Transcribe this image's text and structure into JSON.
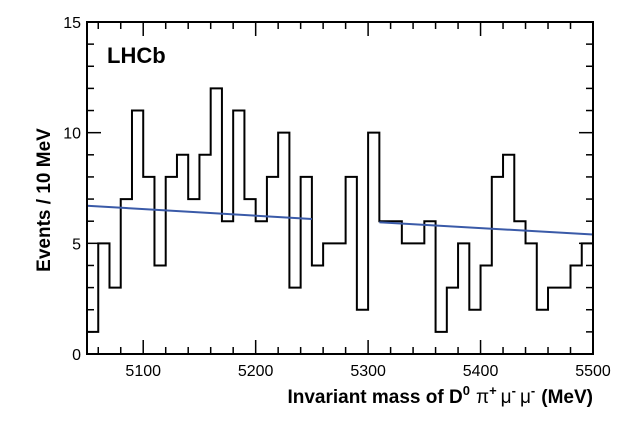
{
  "chart_data": {
    "type": "histogram",
    "title": "",
    "experiment_label": "LHCb",
    "xlabel": "Invariant mass of  D⁰ π⁺ μ⁻ μ⁻ (MeV)",
    "xlabel_parts": {
      "prefix": "Invariant mass of  ",
      "d": "D",
      "d_sup": "0",
      "pi": "π",
      "pi_sup": "+",
      "mu1": "μ",
      "mu1_sup": "-",
      "mu2": "μ",
      "mu2_sup": "-",
      "units": "(MeV)"
    },
    "ylabel": "Events / 10 MeV",
    "xlim": [
      5050,
      5500
    ],
    "ylim": [
      0,
      15
    ],
    "x_ticks": [
      5100,
      5200,
      5300,
      5400,
      5500
    ],
    "x_tick_labels": [
      "5100",
      "5200",
      "5300",
      "5400",
      "5500"
    ],
    "y_ticks": [
      0,
      5,
      10,
      15
    ],
    "y_tick_labels": [
      "0",
      "5",
      "10",
      "15"
    ],
    "bin_width": 10,
    "bin_edges_start": 5050,
    "counts": [
      1,
      5,
      3,
      7,
      11,
      8,
      4,
      8,
      9,
      7,
      9,
      12,
      6,
      11,
      7,
      6,
      8,
      10,
      3,
      8,
      4,
      5,
      5,
      8,
      2,
      10,
      6,
      6,
      5,
      5,
      6,
      1,
      3,
      5,
      2,
      4,
      8,
      9,
      6,
      5,
      2,
      3,
      3,
      4,
      5
    ],
    "fit_segments": [
      {
        "x": [
          5050,
          5250
        ],
        "y": [
          6.7,
          6.1
        ]
      },
      {
        "x": [
          5310,
          5500
        ],
        "y": [
          5.95,
          5.4
        ]
      }
    ],
    "colors": {
      "histogram": "#000000",
      "fit": "#3a5aa8",
      "axis": "#000000"
    }
  }
}
